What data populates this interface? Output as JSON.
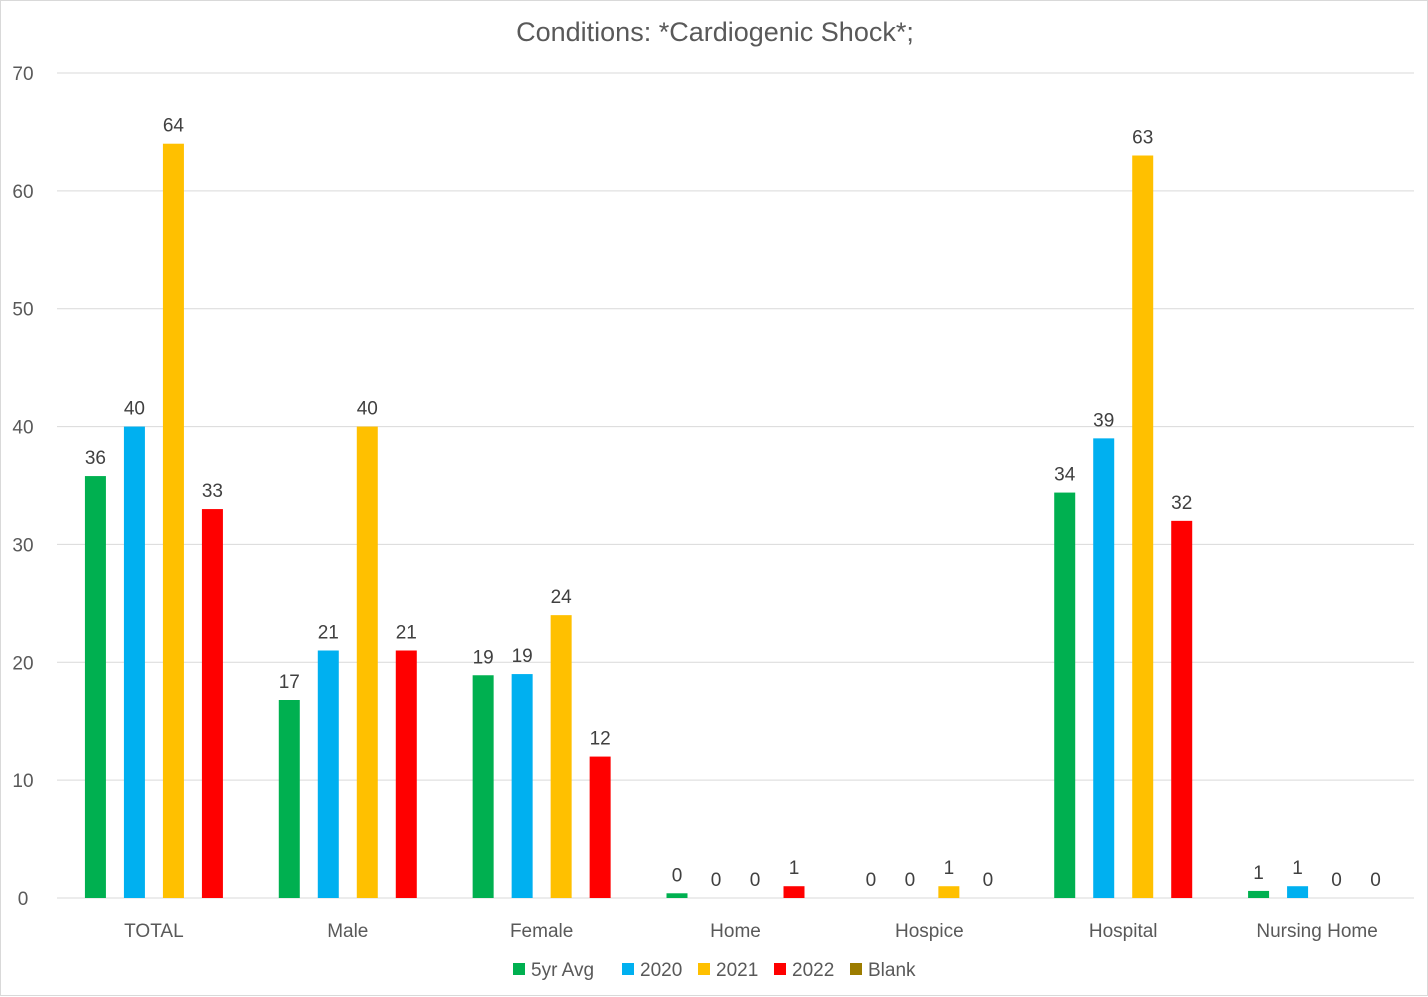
{
  "chart_data": {
    "type": "bar",
    "title": "Conditions: *Cardiogenic Shock*;",
    "xlabel": "",
    "ylabel": "",
    "ylim": [
      0,
      70
    ],
    "yticks": [
      0,
      10,
      20,
      30,
      40,
      50,
      60,
      70
    ],
    "grid": true,
    "legend_position": "bottom",
    "categories": [
      "TOTAL",
      "Male",
      "Female",
      "Home",
      "Hospice",
      "Hospital",
      "Nursing Home"
    ],
    "series": [
      {
        "name": "5yr Avg",
        "color": "#00b050",
        "values": [
          35.8,
          16.8,
          18.9,
          0.4,
          0,
          34.4,
          0.6
        ],
        "labels": [
          "36",
          "17",
          "19",
          "0",
          "0",
          "34",
          "1"
        ]
      },
      {
        "name": "2020",
        "color": "#00b0f0",
        "values": [
          40,
          21,
          19,
          0,
          0,
          39,
          1
        ],
        "labels": [
          "40",
          "21",
          "19",
          "0",
          "0",
          "39",
          "1"
        ]
      },
      {
        "name": "2021",
        "color": "#ffc000",
        "values": [
          64,
          40,
          24,
          0,
          1,
          63,
          0
        ],
        "labels": [
          "64",
          "40",
          "24",
          "0",
          "1",
          "63",
          "0"
        ]
      },
      {
        "name": "2022",
        "color": "#ff0000",
        "values": [
          33,
          21,
          12,
          1,
          0,
          32,
          0
        ],
        "labels": [
          "33",
          "21",
          "12",
          "1",
          "0",
          "32",
          "0"
        ]
      },
      {
        "name": "Blank",
        "color": "#9c7c00",
        "values": [
          null,
          null,
          null,
          null,
          null,
          null,
          null
        ],
        "labels": []
      }
    ]
  }
}
